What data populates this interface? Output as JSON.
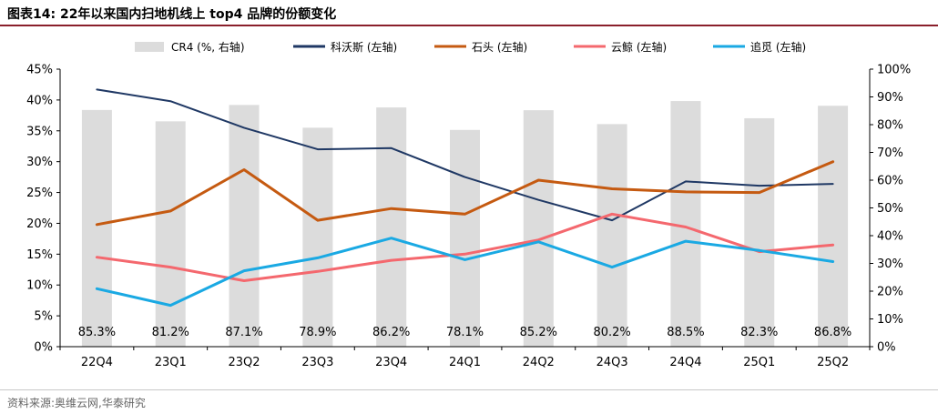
{
  "header": {
    "title": "图表14:  22年以来国内扫地机线上 top4 品牌的份额变化"
  },
  "footer": {
    "source": "资料来源:奥维云网,华泰研究"
  },
  "chart_data": {
    "type": "bar",
    "categories": [
      "22Q4",
      "23Q1",
      "23Q2",
      "23Q3",
      "23Q4",
      "24Q1",
      "24Q2",
      "24Q3",
      "24Q4",
      "25Q1",
      "25Q2"
    ],
    "y_left": {
      "ylim": [
        0,
        45
      ],
      "ticks": [
        "0%",
        "5%",
        "10%",
        "15%",
        "20%",
        "25%",
        "30%",
        "35%",
        "40%",
        "45%"
      ]
    },
    "y_right": {
      "ylim": [
        0,
        100
      ],
      "ticks": [
        "0%",
        "10%",
        "20%",
        "30%",
        "40%",
        "50%",
        "60%",
        "70%",
        "80%",
        "90%",
        "100%"
      ]
    },
    "bar_series": {
      "name": "CR4 (%, 右轴)",
      "axis": "right",
      "color": "#dcdcdc",
      "values": [
        85.3,
        81.2,
        87.1,
        78.9,
        86.2,
        78.1,
        85.2,
        80.2,
        88.5,
        82.3,
        86.8
      ],
      "labels": [
        "85.3%",
        "81.2%",
        "87.1%",
        "78.9%",
        "86.2%",
        "78.1%",
        "85.2%",
        "80.2%",
        "88.5%",
        "82.3%",
        "86.8%"
      ]
    },
    "line_series": [
      {
        "name": "科沃斯 (左轴)",
        "axis": "left",
        "color": "#1f3864",
        "values": [
          41.7,
          39.8,
          35.5,
          32.0,
          32.2,
          27.5,
          23.8,
          20.5,
          26.8,
          26.1,
          26.4
        ]
      },
      {
        "name": "石头 (左轴)",
        "axis": "left",
        "color": "#c55a11",
        "values": [
          19.8,
          22.0,
          28.7,
          20.5,
          22.4,
          21.5,
          27.0,
          25.6,
          25.1,
          25.0,
          30.0
        ]
      },
      {
        "name": "云鲸 (左轴)",
        "axis": "left",
        "color": "#f4686e",
        "values": [
          14.5,
          12.9,
          10.7,
          12.2,
          14.0,
          15.0,
          17.3,
          21.5,
          19.4,
          15.4,
          16.5
        ]
      },
      {
        "name": "追觅 (左轴)",
        "axis": "left",
        "color": "#1aa9e3",
        "values": [
          9.4,
          6.7,
          12.3,
          14.4,
          17.6,
          14.1,
          17.0,
          12.9,
          17.1,
          15.6,
          13.8
        ]
      }
    ],
    "legend_position": "top",
    "grid": false
  }
}
